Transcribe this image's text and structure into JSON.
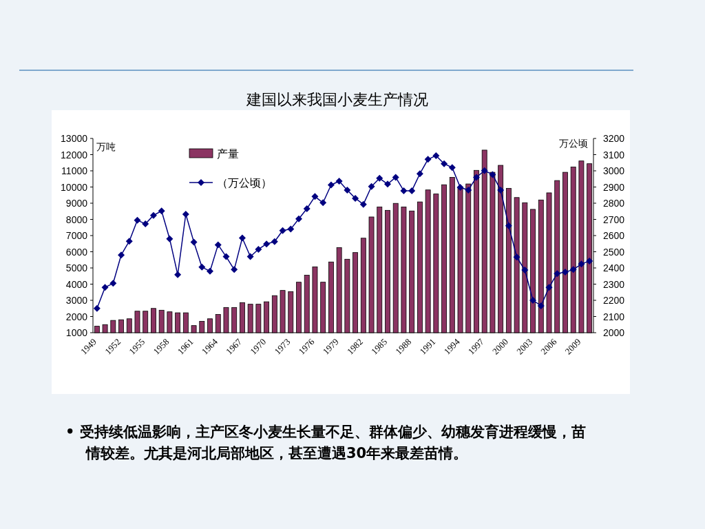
{
  "chart_data": {
    "type": "bar",
    "title": "建国以来我国小麦生产情况",
    "ylabel": "万吨",
    "y2label": "万公顷",
    "categories": [
      "1949",
      null,
      null,
      "1952",
      null,
      null,
      "1955",
      null,
      null,
      "1958",
      null,
      null,
      "1961",
      null,
      null,
      "1964",
      null,
      null,
      "1967",
      null,
      null,
      "1970",
      null,
      null,
      "1973",
      null,
      null,
      "1976",
      null,
      null,
      "1979",
      null,
      null,
      "1982",
      null,
      null,
      "1985",
      null,
      null,
      "1988",
      null,
      null,
      "1991",
      null,
      null,
      "1994",
      null,
      null,
      "1997",
      null,
      null,
      "2000",
      null,
      null,
      "2003",
      null,
      null,
      "2006",
      null,
      null,
      "2009",
      null
    ],
    "series": [
      {
        "name": "产量",
        "color": "#8b3462",
        "values": [
          1400,
          1500,
          1760,
          1800,
          1860,
          2330,
          2330,
          2500,
          2390,
          2290,
          2230,
          2230,
          1440,
          1700,
          1860,
          2130,
          2560,
          2560,
          2860,
          2760,
          2760,
          2910,
          3290,
          3610,
          3540,
          4120,
          4550,
          5070,
          4120,
          5370,
          6260,
          5540,
          5950,
          6840,
          8150,
          8770,
          8560,
          8990,
          8770,
          8520,
          9080,
          9820,
          9570,
          10140,
          10600,
          9990,
          10190,
          11030,
          12280,
          10910,
          11340,
          9920,
          9350,
          9030,
          8620,
          9200,
          9640,
          10400,
          10910,
          11240,
          11610,
          11440
        ]
      },
      {
        "name": "（万公顷）",
        "type": "line",
        "axis": "y2",
        "marker": "diamond",
        "color": "#000080",
        "values": [
          2150,
          2280,
          2305,
          2480,
          2565,
          2695,
          2672,
          2725,
          2752,
          2580,
          2358,
          2732,
          2560,
          2405,
          2380,
          2543,
          2470,
          2390,
          2585,
          2470,
          2515,
          2548,
          2563,
          2631,
          2640,
          2703,
          2766,
          2841,
          2803,
          2913,
          2936,
          2881,
          2830,
          2793,
          2903,
          2954,
          2918,
          2960,
          2877,
          2877,
          2982,
          3071,
          3094,
          3044,
          3020,
          2898,
          2881,
          2960,
          3001,
          2977,
          2881,
          2661,
          2467,
          2387,
          2200,
          2166,
          2280,
          2365,
          2374,
          2390,
          2424,
          2443
        ]
      }
    ],
    "ylim": [
      1000,
      13000
    ],
    "yticks": [
      1000,
      2000,
      3000,
      4000,
      5000,
      6000,
      7000,
      8000,
      9000,
      10000,
      11000,
      12000,
      13000
    ],
    "y2lim": [
      2000,
      3200
    ],
    "y2ticks": [
      2000,
      2100,
      2200,
      2300,
      2400,
      2500,
      2600,
      2700,
      2800,
      2900,
      3000,
      3100,
      3200
    ],
    "legend": "top left",
    "annotations": [
      "• 受持续低温影响，主产区冬小麦生长量不足、群体偏少、幼穗发育进程缓慢，苗情较差。尤其是河北局部地区，甚至遭遇30年来最差苗情。"
    ]
  }
}
